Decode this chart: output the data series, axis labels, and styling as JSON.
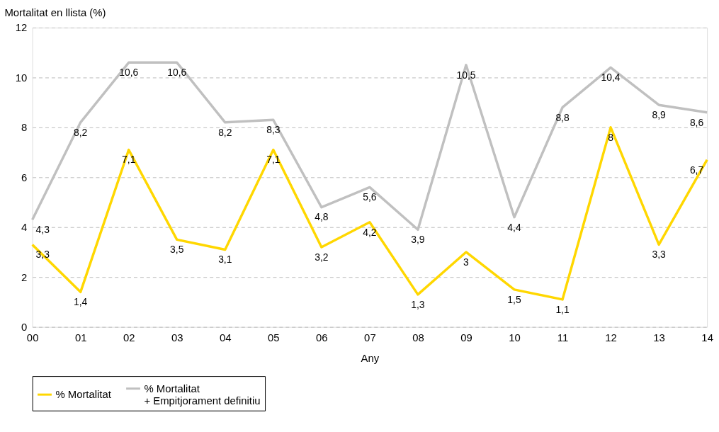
{
  "chart_data": {
    "type": "line",
    "ylabel": "Mortalitat en llista (%)",
    "xlabel": "Any",
    "categories": [
      "00",
      "01",
      "02",
      "03",
      "04",
      "05",
      "06",
      "07",
      "08",
      "09",
      "10",
      "11",
      "12",
      "13",
      "14"
    ],
    "ylim": [
      0,
      12
    ],
    "yticks": [
      0,
      2,
      4,
      6,
      8,
      10,
      12
    ],
    "grid": "y",
    "legend": "bottom",
    "marker": "none",
    "line_style": "solid",
    "series": [
      {
        "name": "% Mortalitat",
        "color": "#ffd700",
        "values": [
          3.3,
          1.4,
          7.1,
          3.5,
          3.1,
          7.1,
          3.2,
          4.2,
          1.3,
          3,
          1.5,
          1.1,
          8,
          3.3,
          6.7
        ],
        "value_labels": [
          "3,3",
          "1,4",
          "7,1",
          "3,5",
          "3,1",
          "7,1",
          "3,2",
          "4,2",
          "1,3",
          "3",
          "1,5",
          "1,1",
          "8",
          "3,3",
          "6,7"
        ]
      },
      {
        "name": "% Mortalitat\n+ Empitjorament definitiu",
        "color": "#c0c0c0",
        "values": [
          4.3,
          8.2,
          10.6,
          10.6,
          8.2,
          8.3,
          4.8,
          5.6,
          3.9,
          10.5,
          4.4,
          8.8,
          10.4,
          8.9,
          8.6
        ],
        "value_labels": [
          "4,3",
          "8,2",
          "10,6",
          "10,6",
          "8,2",
          "8,3",
          "4,8",
          "5,6",
          "3,9",
          "10,5",
          "4,4",
          "8,8",
          "10,4",
          "8,9",
          "8,6"
        ]
      }
    ]
  }
}
